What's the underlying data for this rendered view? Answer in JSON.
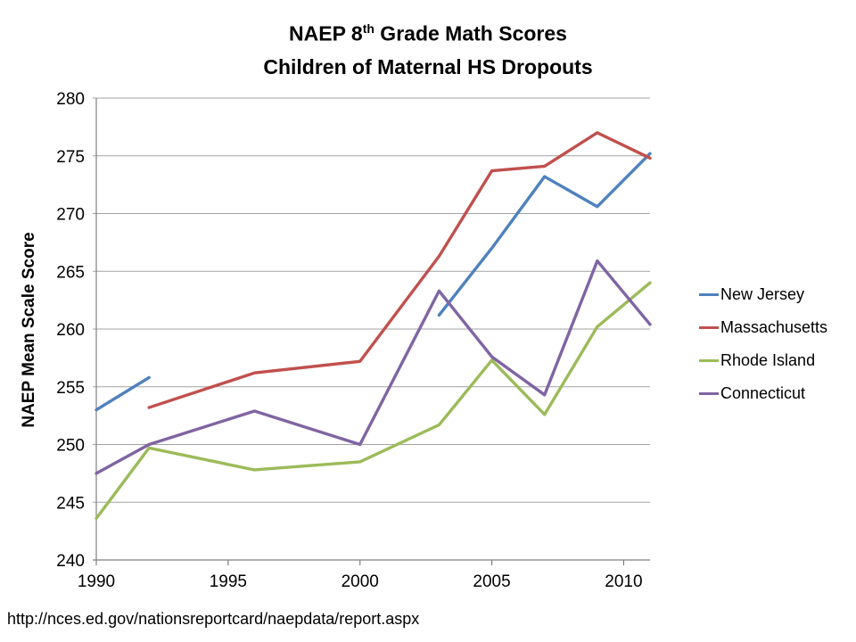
{
  "title": {
    "line1_pre": "NAEP 8",
    "line1_sup": "th",
    "line1_post": " Grade Math Scores",
    "line2": "Children of Maternal HS Dropouts"
  },
  "source_url": "http://nces.ed.gov/nationsreportcard/naepdata/report.aspx",
  "chart_data": {
    "type": "line",
    "title": "NAEP 8th Grade Math Scores",
    "subtitle": "Children of Maternal HS Dropouts",
    "xlabel": "",
    "ylabel": "NAEP Mean Scale Score",
    "x": [
      1990,
      1992,
      1996,
      2000,
      2003,
      2005,
      2007,
      2009,
      2011
    ],
    "x_axis_range": [
      1990,
      2011
    ],
    "x_ticks": [
      1990,
      1995,
      2000,
      2005,
      2010
    ],
    "y_axis_range": [
      240,
      280
    ],
    "y_ticks": [
      240,
      245,
      250,
      255,
      260,
      265,
      270,
      275,
      280
    ],
    "grid": "horizontal",
    "legend_position": "right",
    "gridline_color": "#A3A3A3",
    "axis_color": "#7F7F7F",
    "series": [
      {
        "name": "New Jersey",
        "color": "#4F81BD",
        "values": [
          253.0,
          255.8,
          null,
          null,
          261.2,
          267.0,
          273.2,
          270.6,
          275.2
        ]
      },
      {
        "name": "Massachusetts",
        "color": "#C0504D",
        "values": [
          null,
          253.2,
          256.2,
          257.2,
          266.3,
          273.7,
          274.1,
          277.0,
          274.8
        ]
      },
      {
        "name": "Rhode Island",
        "color": "#9BBB59",
        "values": [
          243.6,
          249.7,
          247.8,
          248.5,
          251.7,
          257.3,
          252.6,
          260.2,
          264.0
        ]
      },
      {
        "name": "Connecticut",
        "color": "#8064A2",
        "values": [
          247.5,
          250.0,
          252.9,
          250.0,
          263.3,
          257.6,
          254.3,
          265.9,
          260.4
        ]
      }
    ]
  }
}
